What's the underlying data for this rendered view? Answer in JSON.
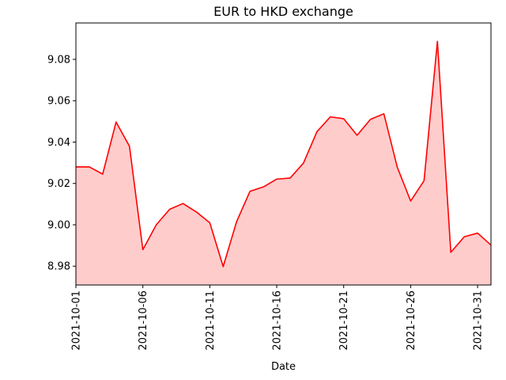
{
  "chart_data": {
    "type": "area",
    "title": "EUR to HKD exchange",
    "xlabel": "Date",
    "ylabel": "",
    "x": [
      "2021-10-01",
      "2021-10-02",
      "2021-10-03",
      "2021-10-04",
      "2021-10-05",
      "2021-10-06",
      "2021-10-07",
      "2021-10-08",
      "2021-10-09",
      "2021-10-10",
      "2021-10-11",
      "2021-10-12",
      "2021-10-13",
      "2021-10-14",
      "2021-10-15",
      "2021-10-16",
      "2021-10-17",
      "2021-10-18",
      "2021-10-19",
      "2021-10-20",
      "2021-10-21",
      "2021-10-22",
      "2021-10-23",
      "2021-10-24",
      "2021-10-25",
      "2021-10-26",
      "2021-10-27",
      "2021-10-28",
      "2021-10-29",
      "2021-10-30",
      "2021-10-31",
      "2021-11-01"
    ],
    "values": [
      9.028,
      9.028,
      9.0245,
      9.0497,
      9.038,
      8.988,
      9.0,
      9.0075,
      9.0103,
      9.0062,
      9.001,
      8.9798,
      9.0015,
      9.0162,
      9.0183,
      9.0221,
      9.0226,
      9.0299,
      9.045,
      9.0522,
      9.0513,
      9.0433,
      9.051,
      9.0537,
      9.0279,
      9.0115,
      9.0213,
      9.0887,
      8.9867,
      8.9942,
      8.996,
      8.9902
    ],
    "xlim": [
      "2021-10-01",
      "2021-11-01"
    ],
    "ylim": [
      8.9709,
      9.0976
    ],
    "xticks": [
      "2021-10-01",
      "2021-10-06",
      "2021-10-11",
      "2021-10-16",
      "2021-10-21",
      "2021-10-26",
      "2021-10-31"
    ],
    "yticks": [
      "8.98",
      "9.00",
      "9.02",
      "9.04",
      "9.06",
      "9.08"
    ],
    "line_color": "#ff0000",
    "fill_color": "#ffcccc",
    "grid": false,
    "legend": false
  }
}
